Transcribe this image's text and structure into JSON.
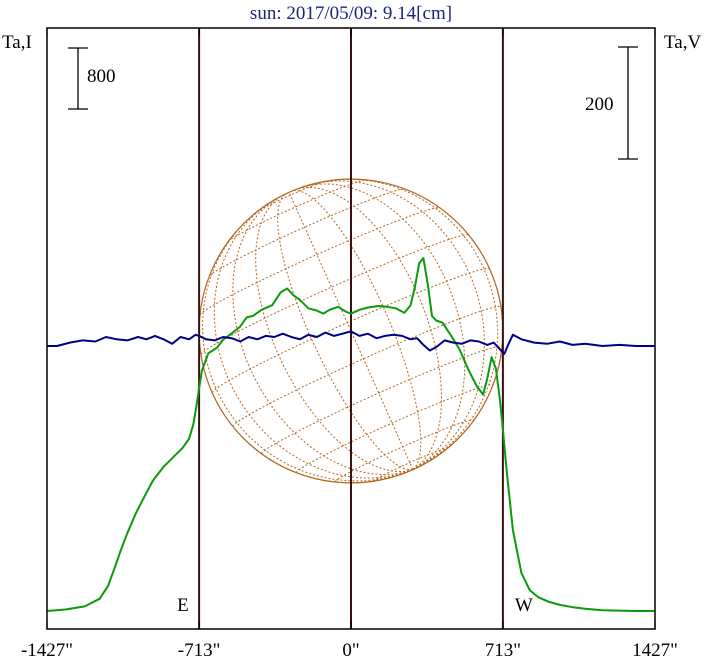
{
  "chart_data": {
    "type": "line",
    "title": "sun: 2017/05/09: 9.14[cm]",
    "left_axis_label": "Ta,I",
    "right_axis_label": "Ta,V",
    "left_scale_bar": "800",
    "right_scale_bar": "200",
    "x_tick_labels": [
      "-1427\"",
      "-713\"",
      "0\"",
      "713\"",
      "1427\""
    ],
    "x_ticks": [
      -1427,
      -713,
      0,
      713,
      1427
    ],
    "xlim": [
      -1427,
      1427
    ],
    "limb_markers": [
      {
        "label": "E",
        "x": -713
      },
      {
        "label": "W",
        "x": 713
      }
    ],
    "center_marker_x": 0,
    "series": [
      {
        "name": "Ta,I",
        "color": "#0a9a0a",
        "axis": "left",
        "x": [
          -1427,
          -1340,
          -1250,
          -1180,
          -1140,
          -1110,
          -1080,
          -1050,
          -1010,
          -970,
          -930,
          -880,
          -830,
          -790,
          -760,
          -740,
          -725,
          -713,
          -700,
          -670,
          -630,
          -600,
          -560,
          -520,
          -490,
          -460,
          -420,
          -370,
          -330,
          -300,
          -270,
          -240,
          -200,
          -160,
          -130,
          -100,
          -60,
          -20,
          0,
          40,
          80,
          130,
          170,
          210,
          250,
          280,
          300,
          320,
          340,
          360,
          380,
          400,
          430,
          470,
          510,
          550,
          590,
          620,
          640,
          660,
          680,
          700,
          713,
          730,
          760,
          800,
          840,
          880,
          930,
          980,
          1040,
          1100,
          1180,
          1260,
          1340,
          1427
        ],
        "values": [
          0,
          20,
          60,
          160,
          330,
          560,
          800,
          1020,
          1280,
          1500,
          1710,
          1890,
          2030,
          2140,
          2260,
          2450,
          2700,
          2920,
          3150,
          3380,
          3450,
          3560,
          3640,
          3730,
          3850,
          3870,
          3950,
          4010,
          4180,
          4230,
          4140,
          4080,
          3970,
          3940,
          3900,
          3950,
          3990,
          3920,
          3900,
          3950,
          3980,
          4000,
          3990,
          3970,
          3910,
          4010,
          4250,
          4560,
          4630,
          4290,
          3870,
          3810,
          3780,
          3610,
          3430,
          3170,
          2950,
          2840,
          3050,
          3330,
          3180,
          2750,
          2380,
          1860,
          1060,
          500,
          270,
          180,
          120,
          80,
          50,
          30,
          10,
          5,
          0,
          0
        ]
      },
      {
        "name": "Ta,V",
        "color": "#00008b",
        "axis": "right",
        "x": [
          -1427,
          -1380,
          -1320,
          -1260,
          -1200,
          -1150,
          -1100,
          -1050,
          -1000,
          -960,
          -920,
          -880,
          -840,
          -800,
          -760,
          -730,
          -713,
          -680,
          -640,
          -600,
          -560,
          -520,
          -480,
          -440,
          -400,
          -360,
          -320,
          -280,
          -240,
          -200,
          -160,
          -120,
          -80,
          -40,
          0,
          40,
          80,
          120,
          160,
          200,
          240,
          280,
          310,
          340,
          370,
          400,
          440,
          480,
          520,
          560,
          600,
          640,
          670,
          700,
          720,
          740,
          760,
          800,
          860,
          920,
          980,
          1040,
          1100,
          1180,
          1260,
          1340,
          1427
        ],
        "values": [
          0,
          0,
          6,
          10,
          8,
          16,
          12,
          10,
          16,
          12,
          18,
          12,
          4,
          16,
          12,
          20,
          18,
          12,
          10,
          16,
          14,
          8,
          16,
          12,
          18,
          16,
          22,
          16,
          12,
          20,
          16,
          24,
          18,
          22,
          26,
          18,
          22,
          14,
          18,
          20,
          18,
          12,
          14,
          2,
          -8,
          -2,
          10,
          6,
          4,
          10,
          8,
          2,
          6,
          -6,
          -14,
          4,
          20,
          12,
          6,
          4,
          8,
          2,
          4,
          0,
          2,
          0,
          0
        ]
      }
    ],
    "colors": {
      "green_curve": "#0a9a0a",
      "blue_curve": "#00008b",
      "solar_disk": "#b5651d",
      "marker_lines": "#3a1010",
      "title": "#1a237e"
    }
  }
}
